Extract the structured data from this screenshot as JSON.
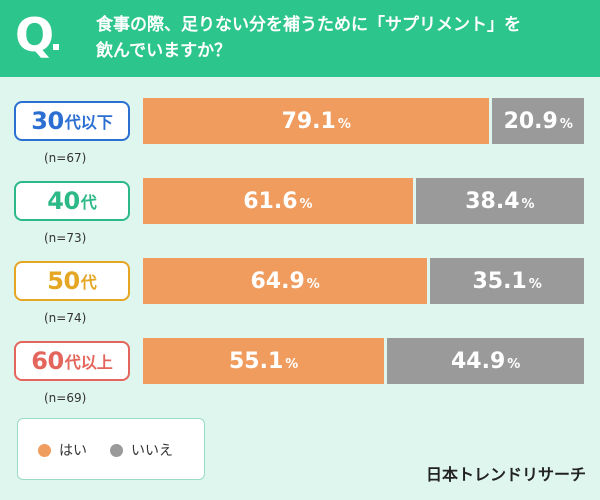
{
  "header": {
    "q_mark": "Q",
    "question_line1": "食事の際、足りない分を補うために「サプリメント」を",
    "question_line2": "飲んでいますか？"
  },
  "colors": {
    "header": "#2cc58c",
    "background": "#dff6ef",
    "yes": "#ef9c5e",
    "no": "#9a9a9a"
  },
  "chart_data": {
    "type": "bar",
    "stacked": true,
    "orientation": "horizontal",
    "unit": "%",
    "categories": [
      "30代以下",
      "40代",
      "50代",
      "60代以上"
    ],
    "sample_sizes": [
      "(n=67)",
      "(n=73)",
      "(n=74)",
      "(n=69)"
    ],
    "series": [
      {
        "name": "はい",
        "values": [
          79.1,
          61.6,
          64.9,
          55.1
        ]
      },
      {
        "name": "いいえ",
        "values": [
          20.9,
          38.4,
          35.1,
          44.9
        ]
      }
    ],
    "xlim": [
      0,
      100
    ]
  },
  "groups": [
    {
      "num": "30",
      "unit": "代以下",
      "n": "(n=67)",
      "color": "#2a6fd1"
    },
    {
      "num": "40",
      "unit": "代",
      "n": "(n=73)",
      "color": "#2cb987"
    },
    {
      "num": "50",
      "unit": "代",
      "n": "(n=74)",
      "color": "#e5a623"
    },
    {
      "num": "60",
      "unit": "代以上",
      "n": "(n=69)",
      "color": "#e4655b"
    }
  ],
  "legend": {
    "yes": "はい",
    "no": "いいえ"
  },
  "brand": "日本トレンドリサーチ"
}
